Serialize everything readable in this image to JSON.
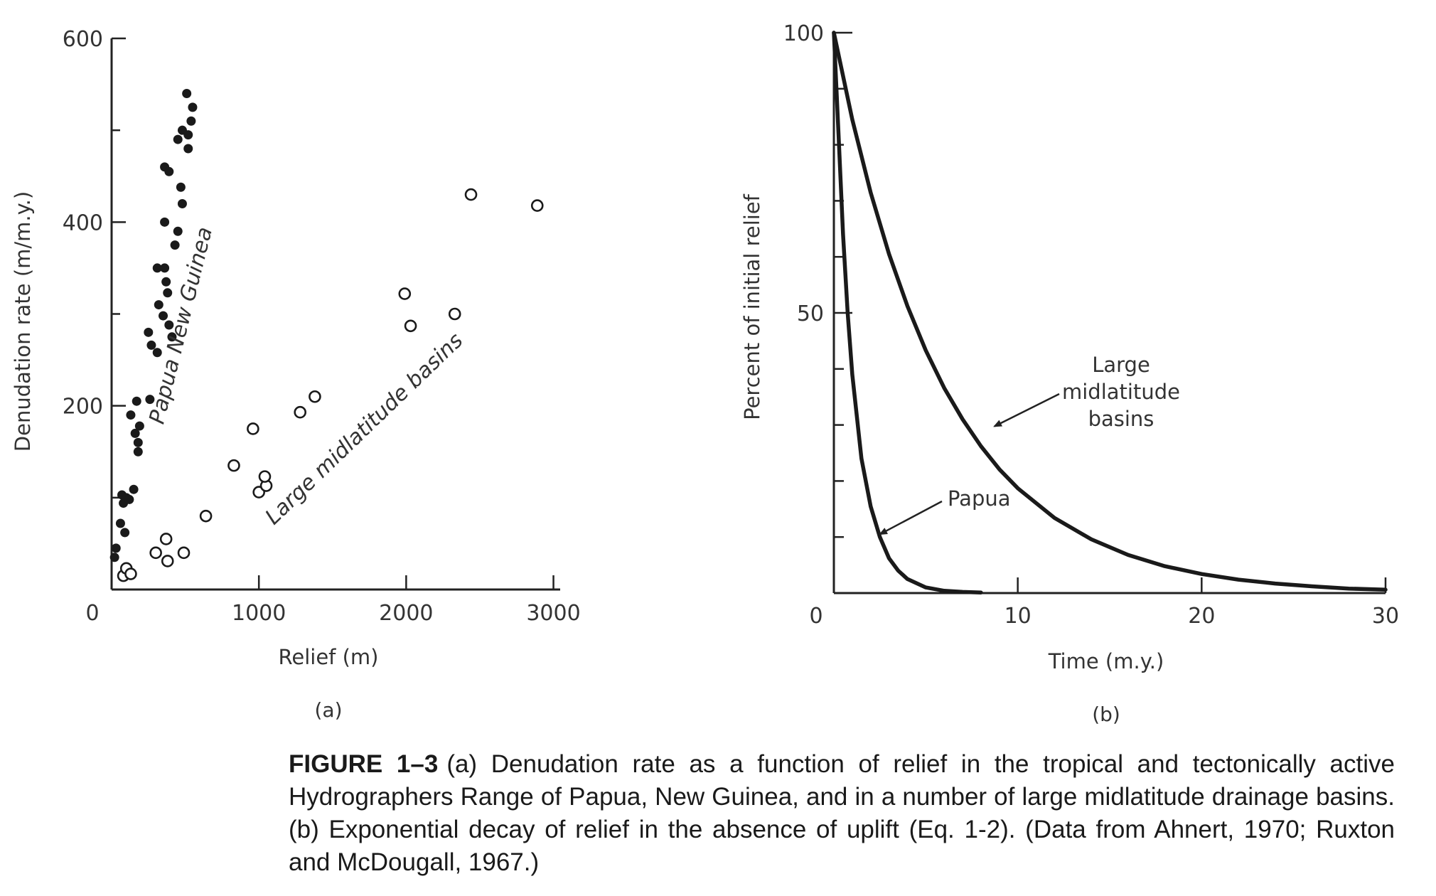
{
  "chart_data": [
    {
      "type": "scatter",
      "panel_label": "(a)",
      "xlabel": "Relief (m)",
      "ylabel": "Denudation rate (m/m.y.)",
      "xlim": [
        0,
        3000
      ],
      "ylim": [
        0,
        600
      ],
      "xticks": [
        "0",
        "1000",
        "2000",
        "3000"
      ],
      "yticks": [
        "200",
        "400",
        "600"
      ],
      "series": [
        {
          "name": "Papua New Guinea",
          "marker": "filled",
          "color": "#1a1a1a",
          "points": [
            [
              30,
              45
            ],
            [
              20,
              35
            ],
            [
              60,
              72
            ],
            [
              90,
              62
            ],
            [
              80,
              94
            ],
            [
              70,
              103
            ],
            [
              100,
              100
            ],
            [
              150,
              109
            ],
            [
              120,
              98
            ],
            [
              130,
              190
            ],
            [
              160,
              170
            ],
            [
              190,
              178
            ],
            [
              180,
              160
            ],
            [
              180,
              150
            ],
            [
              170,
              205
            ],
            [
              260,
              207
            ],
            [
              250,
              280
            ],
            [
              270,
              266
            ],
            [
              310,
              258
            ],
            [
              320,
              310
            ],
            [
              310,
              350
            ],
            [
              360,
              350
            ],
            [
              350,
              298
            ],
            [
              390,
              288
            ],
            [
              370,
              335
            ],
            [
              360,
              400
            ],
            [
              380,
              323
            ],
            [
              410,
              275
            ],
            [
              360,
              460
            ],
            [
              390,
              455
            ],
            [
              430,
              375
            ],
            [
              450,
              390
            ],
            [
              470,
              438
            ],
            [
              480,
              420
            ],
            [
              450,
              490
            ],
            [
              480,
              500
            ],
            [
              520,
              480
            ],
            [
              510,
              540
            ],
            [
              520,
              495
            ],
            [
              540,
              510
            ],
            [
              550,
              525
            ]
          ]
        },
        {
          "name": "Large midlatitude basins",
          "marker": "open",
          "color": "#1a1a1a",
          "points": [
            [
              80,
              15
            ],
            [
              100,
              23
            ],
            [
              130,
              17
            ],
            [
              300,
              40
            ],
            [
              370,
              55
            ],
            [
              380,
              31
            ],
            [
              490,
              40
            ],
            [
              640,
              80
            ],
            [
              830,
              135
            ],
            [
              960,
              175
            ],
            [
              1000,
              106
            ],
            [
              1050,
              113
            ],
            [
              1040,
              123
            ],
            [
              1280,
              193
            ],
            [
              1380,
              210
            ],
            [
              1990,
              322
            ],
            [
              2030,
              287
            ],
            [
              2330,
              300
            ],
            [
              2440,
              430
            ],
            [
              2890,
              418
            ]
          ]
        }
      ]
    },
    {
      "type": "line",
      "panel_label": "(b)",
      "xlabel": "Time (m.y.)",
      "ylabel": "Percent of initial relief",
      "xlim": [
        0,
        30
      ],
      "ylim": [
        0,
        100
      ],
      "xticks": [
        "0",
        "10",
        "20",
        "30"
      ],
      "yticks": [
        "50",
        "100"
      ],
      "series": [
        {
          "name": "Large midlatitude basins",
          "color": "#1a1a1a",
          "x": [
            0,
            1,
            2,
            3,
            4,
            5,
            6,
            7,
            8,
            9,
            10,
            12,
            14,
            16,
            18,
            20,
            22,
            24,
            26,
            28,
            30
          ],
          "y": [
            100,
            84.5,
            71.5,
            60.5,
            51.2,
            43.3,
            36.6,
            31.0,
            26.2,
            22.1,
            18.7,
            13.4,
            9.6,
            6.8,
            4.8,
            3.4,
            2.4,
            1.7,
            1.2,
            0.8,
            0.6
          ]
        },
        {
          "name": "Papua",
          "color": "#1a1a1a",
          "x": [
            0,
            0.25,
            0.5,
            0.75,
            1,
            1.5,
            2,
            2.5,
            3,
            3.5,
            4,
            5,
            6,
            7,
            8
          ],
          "y": [
            100,
            82,
            64,
            50,
            39,
            24,
            15.5,
            10,
            6.2,
            4,
            2.5,
            1.0,
            0.4,
            0.2,
            0.1
          ]
        }
      ],
      "annotations": [
        {
          "text": [
            "Large",
            "midlatitude",
            "basins"
          ],
          "points_to": [
            8.5,
            29
          ]
        },
        {
          "text": [
            "Papua"
          ],
          "points_to": [
            2.2,
            10
          ]
        }
      ]
    }
  ],
  "caption": {
    "label": "FIGURE 1–3",
    "text": "(a) Denudation rate as a function of relief in the tropical and tectonically active Hydrographers Range of Papua, New Guinea, and in a number of large midlatitude drainage basins. (b) Exponential decay of relief in the absence of uplift (Eq. 1-2). (Data from Ahnert, 1970; Ruxton and McDougall, 1967.)"
  }
}
